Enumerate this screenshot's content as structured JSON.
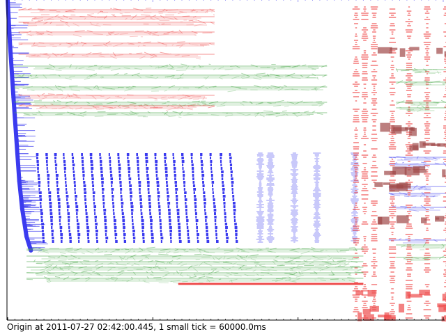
{
  "caption": "Origin at 2011-07-27 02:42:00.445, 1 small tick = 60000.0ms",
  "chart_data": {
    "type": "scatter",
    "title": "",
    "xlabel": "",
    "ylabel": "",
    "origin": "2011-07-27 02:42:00.445",
    "small_tick_ms": 60000.0,
    "grid": false,
    "legend": "none",
    "colors": {
      "blue": "#3b3bef",
      "red": "#ee4b4b",
      "green": "#4aa84a",
      "dark_red": "#a04848",
      "axis": "#000000"
    },
    "series": [
      {
        "color": "blue",
        "segments": [
          {
            "kind": "origin_curve",
            "x": [
              0,
              0.3,
              0.8,
              1.2,
              1.6,
              2.0,
              2.6,
              3.2
            ],
            "y": [
              0,
              60,
              140,
              200,
              260,
              300,
              340,
              360
            ]
          },
          {
            "kind": "diagonal_streaks",
            "start_x": [
              4.0,
              5.3,
              6.5,
              7.7,
              8.9,
              10.2,
              11.4,
              12.7,
              14.0,
              15.2,
              16.5,
              17.8,
              19.0,
              20.3,
              21.6,
              22.8,
              24.0,
              25.3,
              26.6,
              27.9,
              29.3,
              30.6
            ],
            "y_range": [
              220,
              345
            ],
            "dx": 0.9
          },
          {
            "kind": "dense_columns",
            "x": [
              34.8,
              36.2,
              39.5,
              42.6,
              47.8
            ],
            "y_range": [
              220,
              350
            ]
          },
          {
            "kind": "right_bands",
            "x_range": [
              52.5,
              60.5
            ],
            "y": [
              226,
              236,
              268,
              278,
              298,
              345
            ]
          }
        ]
      },
      {
        "color": "red",
        "segments": [
          {
            "kind": "top_bands",
            "x_range": [
              1.5,
              28.5
            ],
            "y": [
              14,
              24,
              32,
              46,
              62,
              78,
              137,
              152
            ]
          },
          {
            "kind": "tail_lines",
            "x": [
              [
                23.5,
                49.0
              ]
            ],
            "y": [
              408
            ]
          },
          {
            "kind": "columns",
            "x": [
              48.0,
              49.2,
              50.5,
              53.0,
              55.3,
              57.8,
              60.5
            ],
            "y_range": [
              10,
              458
            ]
          },
          {
            "kind": "bottom_blocks",
            "x_range": [
              43.5,
              60.5
            ],
            "y": [
              420,
              440,
              452
            ]
          }
        ]
      },
      {
        "color": "green",
        "segments": [
          {
            "kind": "upper_bands",
            "x_range": [
              0.9,
              44.0
            ],
            "y": [
              95,
              108,
              125,
              147,
              162
            ]
          },
          {
            "kind": "lower_bands",
            "x_range": [
              2.6,
              49.0
            ],
            "y": [
              358,
              368,
              376,
              384,
              392,
              400
            ]
          },
          {
            "kind": "right_bands",
            "x_range": [
              53.5,
              60.5
            ],
            "y": [
              100,
              118,
              147,
              155,
              352,
              370
            ]
          }
        ]
      },
      {
        "color": "dark_red",
        "segments": [
          {
            "kind": "blocks",
            "x_range": [
              50.5,
              60.5
            ],
            "y": [
              70,
              180,
              205,
              242,
              262,
              310
            ]
          }
        ]
      }
    ],
    "x_ticks_small": 61
  }
}
